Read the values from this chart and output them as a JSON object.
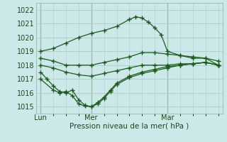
{
  "title": "",
  "xlabel": "Pression niveau de la mer( hPa )",
  "bg_color": "#cce8e8",
  "grid_color": "#aacccc",
  "line_color": "#1a5c1a",
  "xtick_labels": [
    "Lun",
    "Mer",
    "Mar"
  ],
  "xtick_positions": [
    0,
    48,
    120
  ],
  "ylim": [
    1014.5,
    1022.5
  ],
  "yticks": [
    1015,
    1016,
    1017,
    1018,
    1019,
    1020,
    1021,
    1022
  ],
  "xlim": [
    -4,
    172
  ],
  "vline_positions": [
    0,
    48,
    120
  ],
  "lines": [
    {
      "x": [
        0,
        12,
        24,
        36,
        48,
        60,
        72,
        84,
        90,
        96,
        102,
        108,
        114,
        120,
        132,
        144,
        156,
        168
      ],
      "y": [
        1019.0,
        1019.2,
        1019.6,
        1020.0,
        1020.3,
        1020.5,
        1020.8,
        1021.3,
        1021.5,
        1021.4,
        1021.1,
        1020.7,
        1020.2,
        1019.0,
        1018.7,
        1018.5,
        1018.5,
        1018.0
      ]
    },
    {
      "x": [
        0,
        12,
        24,
        36,
        48,
        60,
        72,
        84,
        96,
        108,
        120,
        132,
        144,
        156,
        168
      ],
      "y": [
        1018.5,
        1018.3,
        1018.0,
        1018.0,
        1018.0,
        1018.2,
        1018.4,
        1018.6,
        1018.9,
        1018.9,
        1018.8,
        1018.7,
        1018.6,
        1018.5,
        1018.3
      ]
    },
    {
      "x": [
        0,
        12,
        24,
        36,
        48,
        60,
        72,
        84,
        96,
        108,
        120,
        132,
        144,
        156,
        168
      ],
      "y": [
        1018.0,
        1017.8,
        1017.5,
        1017.3,
        1017.2,
        1017.4,
        1017.6,
        1017.8,
        1018.0,
        1018.0,
        1018.0,
        1018.1,
        1018.1,
        1018.2,
        1018.0
      ]
    },
    {
      "x": [
        0,
        12,
        18,
        24,
        30,
        36,
        42,
        48,
        54,
        60,
        66,
        72,
        84,
        96,
        108,
        120,
        132,
        144,
        156,
        168
      ],
      "y": [
        1017.0,
        1016.2,
        1016.0,
        1016.1,
        1015.8,
        1015.2,
        1015.05,
        1015.0,
        1015.2,
        1015.6,
        1016.1,
        1016.6,
        1017.1,
        1017.4,
        1017.6,
        1017.8,
        1018.0,
        1018.1,
        1018.2,
        1018.0
      ]
    },
    {
      "x": [
        0,
        6,
        12,
        18,
        24,
        30,
        36,
        42,
        48,
        54,
        60,
        66,
        72,
        84,
        96,
        108,
        120,
        132,
        144,
        156,
        168
      ],
      "y": [
        1017.5,
        1017.0,
        1016.5,
        1016.1,
        1016.0,
        1016.2,
        1015.5,
        1015.1,
        1015.0,
        1015.3,
        1015.7,
        1016.2,
        1016.7,
        1017.2,
        1017.5,
        1017.7,
        1017.9,
        1018.0,
        1018.1,
        1018.2,
        1018.0
      ]
    }
  ]
}
